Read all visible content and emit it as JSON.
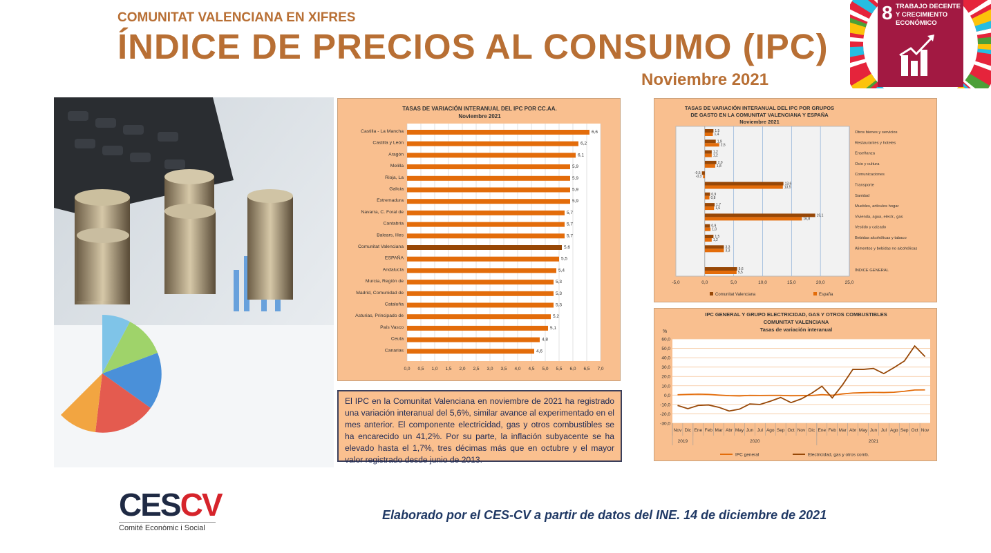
{
  "header": {
    "kicker": "COMUNITAT VALENCIANA EN XIFRES",
    "title": "ÍNDICE DE PRECIOS AL CONSUMO (IPC)",
    "period": "Noviembre 2021"
  },
  "sdg": {
    "number": "8",
    "text": "TRABAJO DECENTE Y CRECIMIENTO ECONÓMICO",
    "color": "#a21942"
  },
  "note": "El IPC en la Comunitat Valenciana en noviembre de 2021 ha registrado una variación interanual del 5,6%, similar avance al experimentado en el mes anterior. El componente electricidad, gas y otros combustibles se ha encarecido un 41,2%. Por su parte, la inflación subyacente se ha elevado hasta el 1,7%, tres décimas más que en octubre y el mayor valor registrado desde junio de 2013.",
  "footer": "Elaborado por el CES-CV a partir de datos del INE. 14 de diciembre de 2021",
  "logo": {
    "text": "CESCV",
    "subtitle": "Comité Econòmic i Social"
  },
  "colors": {
    "accent": "#b86f34",
    "bar": "#e36c0a",
    "bar_dark": "#974706",
    "panel": "#f9bf8f"
  },
  "chart_data": [
    {
      "type": "bar",
      "orientation": "horizontal",
      "title": "TASAS DE VARIACIÓN INTERANUAL DEL IPC POR CC.AA.",
      "subtitle": "Noviembre 2021",
      "categories": [
        "Castilla - La Mancha",
        "Castilla y León",
        "Aragón",
        "Melilla",
        "Rioja, La",
        "Galicia",
        "Extremadura",
        "Navarra, C. Foral de",
        "Cantabria",
        "Balears, Illes",
        "Comunitat Valenciana",
        "ESPAÑA",
        "Andalucía",
        "Murcia, Región de",
        "Madrid, Comunidad de",
        "Cataluña",
        "Asturias, Principado de",
        "País Vasco",
        "Ceuta",
        "Canarias"
      ],
      "values": [
        6.6,
        6.2,
        6.1,
        5.9,
        5.9,
        5.9,
        5.9,
        5.7,
        5.7,
        5.7,
        5.6,
        5.5,
        5.4,
        5.3,
        5.3,
        5.3,
        5.2,
        5.1,
        4.8,
        4.6
      ],
      "highlight": "Comunitat Valenciana",
      "xlim": [
        0,
        7
      ],
      "xticks": [
        "0,0",
        "0,5",
        "1,0",
        "1,5",
        "2,0",
        "2,5",
        "3,0",
        "3,5",
        "4,0",
        "4,5",
        "5,0",
        "5,5",
        "6,0",
        "6,5",
        "7,0"
      ],
      "grid": true
    },
    {
      "type": "bar",
      "orientation": "horizontal",
      "title": "TASAS DE VARIACIÓN INTERANUAL DEL IPC POR GRUPOS DE GASTO EN LA COMUNITAT VALENCIANA Y ESPAÑA",
      "subtitle": "Noviembre 2021",
      "categories": [
        "Otros bienes y servicios",
        "Restaurantes y hoteles",
        "Enseñanza",
        "Ocio y cultura",
        "Comunicaciones",
        "Transporte",
        "Sanidad",
        "Muebles, artículos hogar",
        "Vivienda, agua, electr., gas",
        "Vestido y calzado",
        "Bebidas alcohólicas y tabaco",
        "Alimentos y bebidas no alcohólicas",
        "ÍNDICE GENERAL"
      ],
      "series": [
        {
          "name": "Comunitat Valenciana",
          "color": "#974706",
          "values": [
            1.5,
            1.9,
            1.2,
            2.0,
            -0.5,
            13.6,
            0.9,
            1.7,
            19.1,
            0.9,
            1.5,
            3.3,
            5.6
          ]
        },
        {
          "name": "España",
          "color": "#e36c0a",
          "values": [
            1.4,
            2.5,
            1.2,
            1.8,
            -0.3,
            13.5,
            0.8,
            1.6,
            16.8,
            1.0,
            1.2,
            3.3,
            5.5
          ]
        }
      ],
      "xlim": [
        -5,
        25
      ],
      "xticks": [
        "-5,0",
        "0,0",
        "5,0",
        "10,0",
        "15,0",
        "20,0",
        "25,0"
      ],
      "legend": "bottom",
      "grid": true
    },
    {
      "type": "line",
      "title": "IPC GENERAL Y GRUPO ELECTRICIDAD, GAS Y OTROS COMBUSTIBLES",
      "subtitle": "COMUNITAT VALENCIANA",
      "subtitle2": "Tasas de variación interanual",
      "ylabel": "%",
      "x": [
        "Nov",
        "Dic",
        "Ene",
        "Feb",
        "Mar",
        "Abr",
        "May",
        "Jun",
        "Jul",
        "Ago",
        "Sep",
        "Oct",
        "Nov",
        "Dic",
        "Ene",
        "Feb",
        "Mar",
        "Abr",
        "May",
        "Jun",
        "Jul",
        "Ago",
        "Sep",
        "Oct",
        "Nov"
      ],
      "years": [
        {
          "label": "2019",
          "from": 0,
          "to": 1
        },
        {
          "label": "2020",
          "from": 2,
          "to": 13
        },
        {
          "label": "2021",
          "from": 14,
          "to": 24
        }
      ],
      "ylim": [
        -30,
        60
      ],
      "yticks": [
        "-30,0",
        "-20,0",
        "-10,0",
        "0,0",
        "10,0",
        "20,0",
        "30,0",
        "40,0",
        "50,0",
        "60,0"
      ],
      "series": [
        {
          "name": "IPC general",
          "color": "#e36c0a",
          "values": [
            0.4,
            0.8,
            1.1,
            0.8,
            0.0,
            -0.6,
            -0.8,
            -0.3,
            -0.4,
            -0.3,
            -0.3,
            -0.7,
            -0.6,
            -0.4,
            0.5,
            -0.1,
            1.3,
            2.3,
            2.6,
            2.9,
            2.8,
            3.1,
            4.1,
            5.5,
            5.6
          ]
        },
        {
          "name": "Electricidad, gas y otros comb.",
          "color": "#974706",
          "values": [
            -11,
            -14.5,
            -11,
            -10.5,
            -13,
            -17,
            -15,
            -9.5,
            -10,
            -6.5,
            -2.5,
            -8,
            -4,
            2,
            9.5,
            -3,
            11,
            27.5,
            27.5,
            28.5,
            23,
            29.5,
            36.5,
            52.5,
            41.2
          ]
        }
      ],
      "legend": "bottom",
      "grid": true
    }
  ]
}
